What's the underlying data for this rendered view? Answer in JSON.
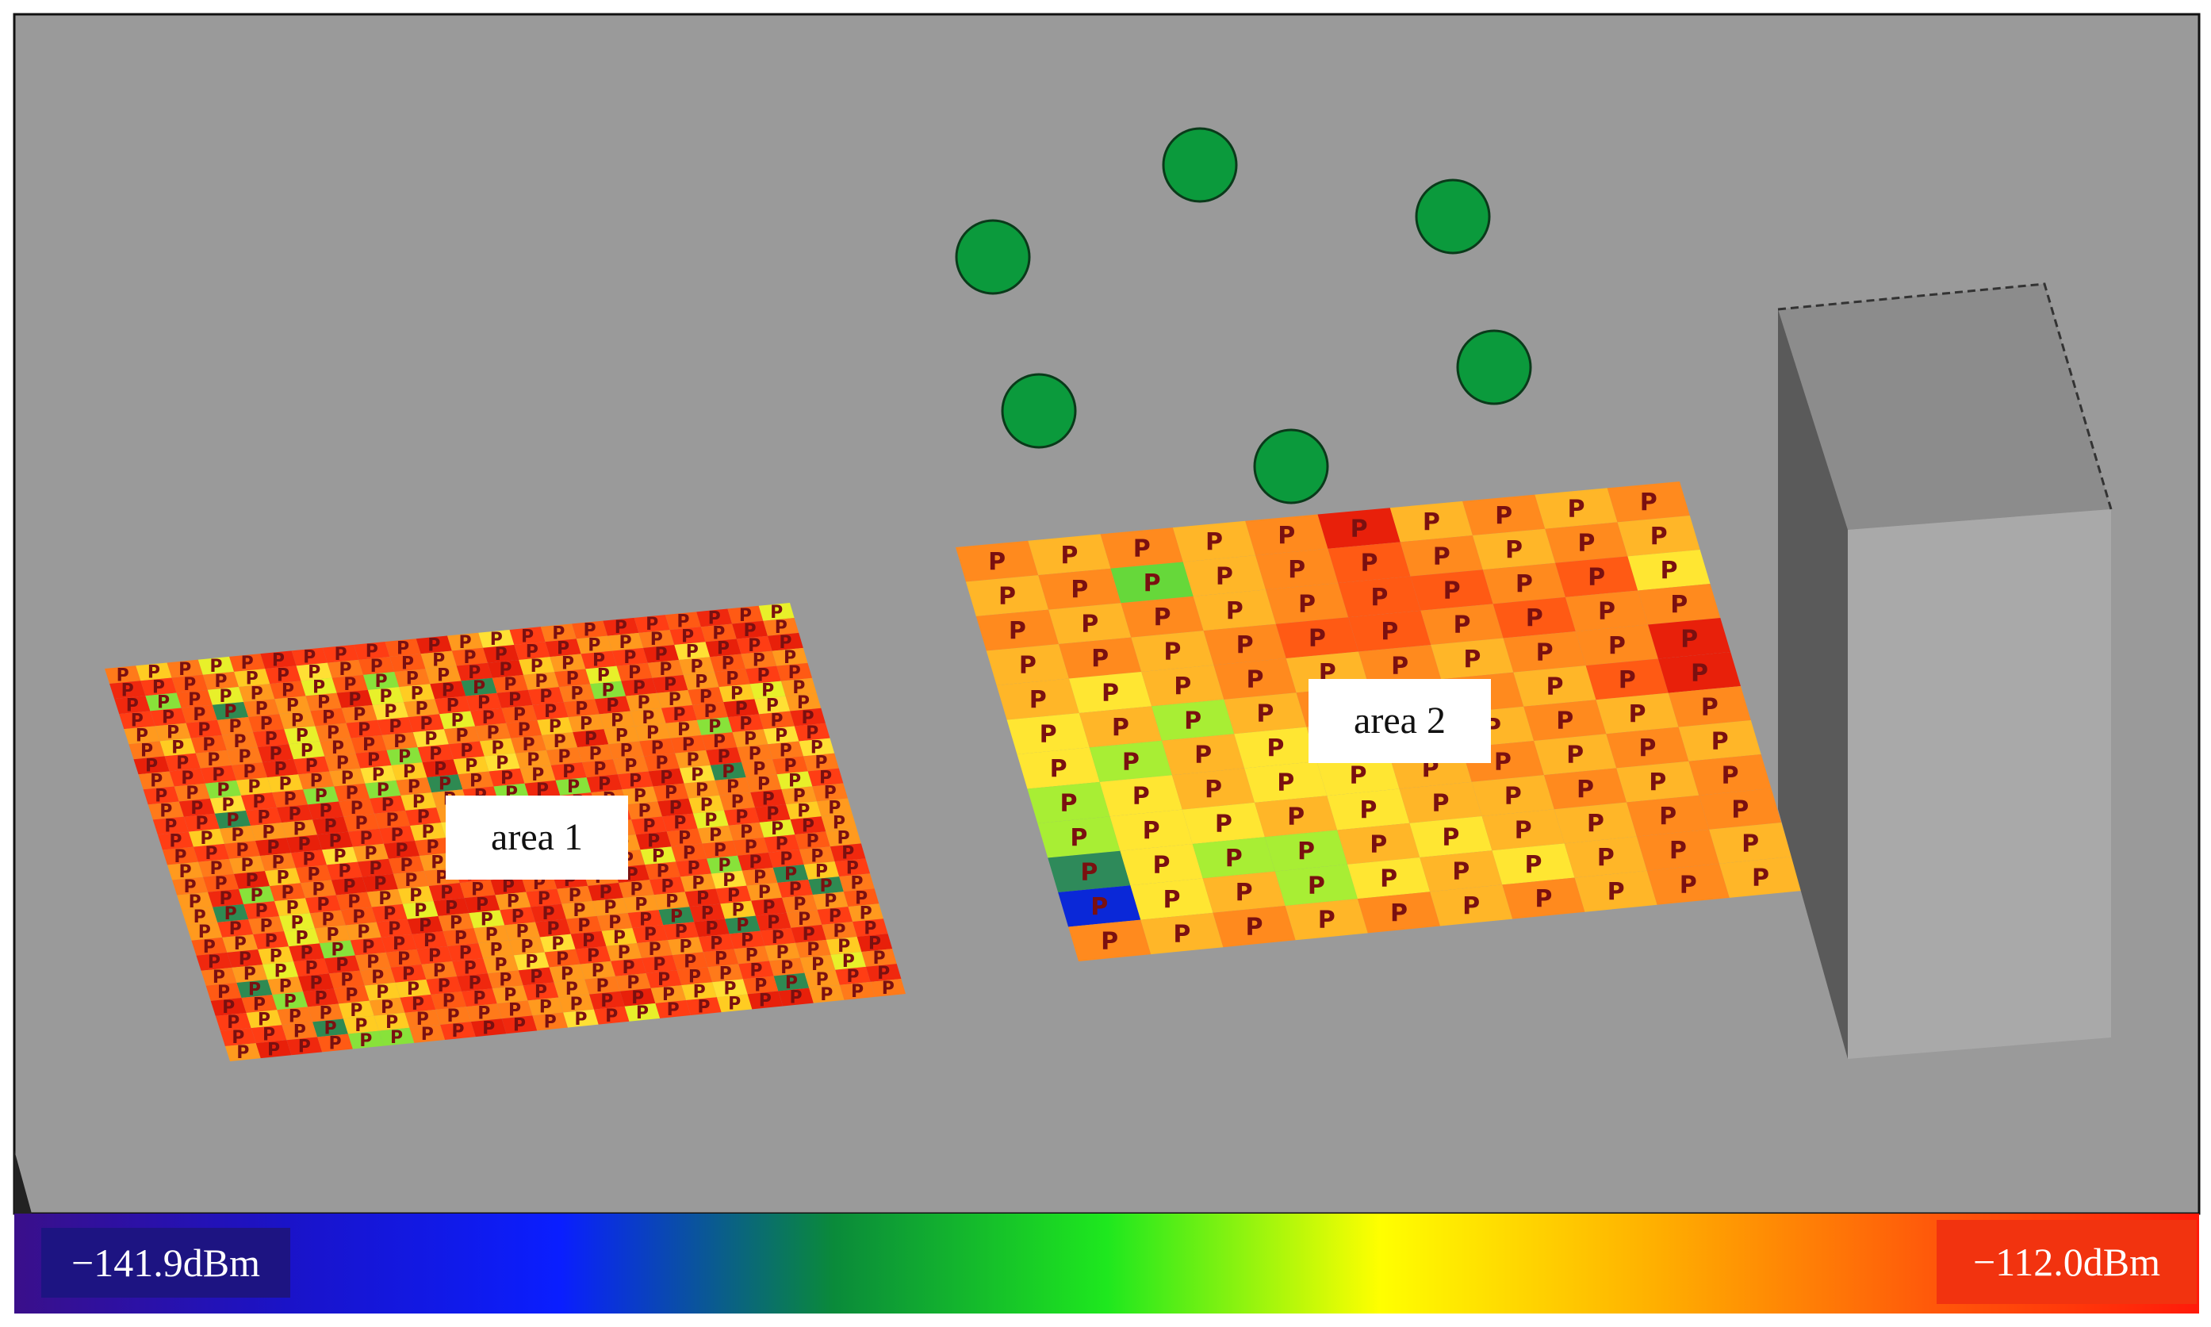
{
  "labels": {
    "area1": "area 1",
    "area2": "area 2"
  },
  "colorbar": {
    "min_label": "−141.9dBm",
    "max_label": "−112.0dBm",
    "stops": [
      "#3a0f8a",
      "#1a13c8",
      "#0a1eff",
      "#0a8a3a",
      "#1ee81e",
      "#ffff00",
      "#ffb000",
      "#ff5a0a",
      "#ff1a0a"
    ]
  },
  "colors": {
    "ground": "#9a9a9a",
    "transmitter": "#0b9a3c",
    "building_front": "#a9a9a9",
    "building_side": "#5a5a5a",
    "building_top": "#8c8c8c"
  },
  "icons": {
    "transmitter": "green-circle",
    "receiver": "chair-glyph"
  },
  "heatmap": {
    "area1": {
      "rows": 26,
      "cols": 22,
      "dominant": [
        "#ff3d14",
        "#ff5a14",
        "#ff7a1a",
        "#ff9a1e"
      ],
      "hot": [
        "#e8200a",
        "#f0280e"
      ],
      "warm": [
        "#ffcc22",
        "#ffe034",
        "#e8f02a"
      ],
      "cold": [
        "#88e23a",
        "#2e8a52"
      ]
    },
    "area2": {
      "rows": 12,
      "cols": 10,
      "levels": [
        [
          6,
          5,
          6,
          5,
          6,
          8,
          5,
          6,
          5,
          6
        ],
        [
          5,
          6,
          2,
          5,
          6,
          7,
          6,
          5,
          6,
          5
        ],
        [
          6,
          5,
          6,
          5,
          6,
          7,
          7,
          6,
          7,
          4
        ],
        [
          5,
          6,
          5,
          6,
          7,
          7,
          6,
          7,
          6,
          6
        ],
        [
          5,
          4,
          5,
          6,
          5,
          6,
          5,
          6,
          6,
          8
        ],
        [
          4,
          5,
          3,
          5,
          6,
          5,
          6,
          5,
          7,
          8
        ],
        [
          4,
          3,
          5,
          4,
          5,
          6,
          5,
          6,
          5,
          6
        ],
        [
          3,
          4,
          5,
          4,
          4,
          5,
          6,
          5,
          6,
          5
        ],
        [
          3,
          4,
          4,
          5,
          4,
          5,
          5,
          6,
          5,
          6
        ],
        [
          1,
          4,
          3,
          3,
          5,
          4,
          5,
          5,
          6,
          6
        ],
        [
          0,
          4,
          5,
          3,
          4,
          5,
          4,
          5,
          6,
          5
        ],
        [
          6,
          5,
          6,
          5,
          6,
          5,
          6,
          5,
          6,
          5
        ]
      ],
      "palette": [
        "#0a28d8",
        "#2e8a5a",
        "#66d83a",
        "#a8ee34",
        "#ffe632",
        "#ffb628",
        "#ff8a1e",
        "#ff5a14",
        "#e8200a"
      ]
    }
  }
}
